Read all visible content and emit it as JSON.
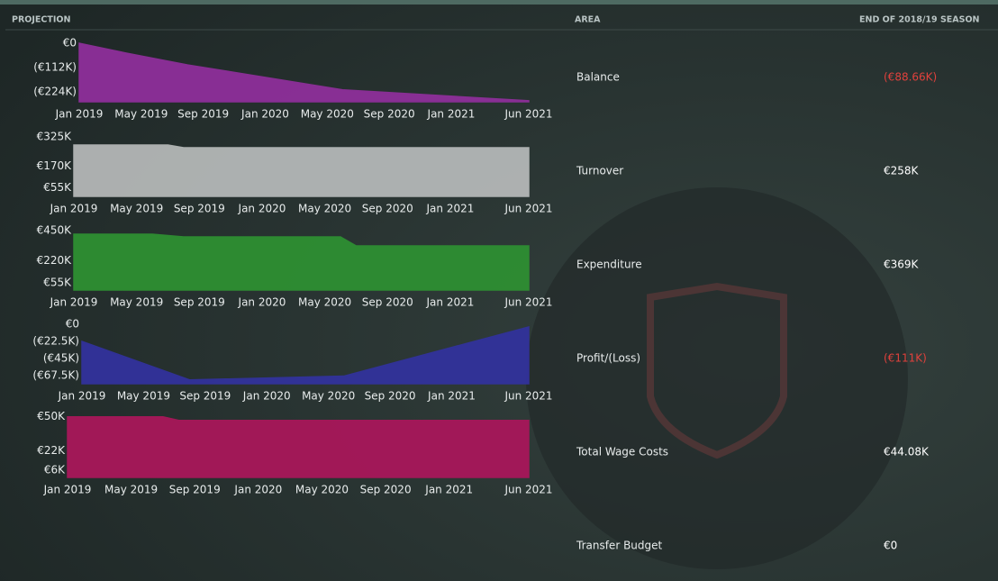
{
  "header": {
    "projection": "PROJECTION",
    "area": "AREA",
    "season": "END OF 2018/19 SEASON"
  },
  "chart_data": [
    {
      "type": "area",
      "color": "#8e2f9a",
      "x": [
        "2019-01",
        "2019-04",
        "2019-08",
        "2020-06",
        "2021-06"
      ],
      "values": [
        0,
        -45,
        -100,
        -215,
        -265
      ],
      "xlim": [
        "2019-01",
        "2021-06"
      ],
      "ylim": [
        -270,
        0
      ],
      "yticks": [
        {
          "value": 0,
          "label": "€0"
        },
        {
          "value": -112,
          "label": "(€112K)"
        },
        {
          "value": -224,
          "label": "(€224K)"
        }
      ],
      "xticks": [
        {
          "value": "2019-01",
          "label": "Jan 2019"
        },
        {
          "value": "2019-05",
          "label": "May 2019"
        },
        {
          "value": "2019-09",
          "label": "Sep 2019"
        },
        {
          "value": "2020-01",
          "label": "Jan 2020"
        },
        {
          "value": "2020-05",
          "label": "May 2020"
        },
        {
          "value": "2020-09",
          "label": "Sep 2020"
        },
        {
          "value": "2021-01",
          "label": "Jan 2021"
        },
        {
          "value": "2021-06",
          "label": "Jun 2021"
        }
      ]
    },
    {
      "type": "area",
      "color": "#b4b7b7",
      "x": [
        "2019-01",
        "2019-07",
        "2019-08",
        "2021-06"
      ],
      "values": [
        282,
        282,
        268,
        268
      ],
      "xlim": [
        "2019-01",
        "2021-06"
      ],
      "ylim": [
        10,
        325
      ],
      "yticks": [
        {
          "value": 325,
          "label": "€325K"
        },
        {
          "value": 170,
          "label": "€170K"
        },
        {
          "value": 55,
          "label": "€55K"
        }
      ],
      "xticks": [
        {
          "value": "2019-01",
          "label": "Jan 2019"
        },
        {
          "value": "2019-05",
          "label": "May 2019"
        },
        {
          "value": "2019-09",
          "label": "Sep 2019"
        },
        {
          "value": "2020-01",
          "label": "Jan 2020"
        },
        {
          "value": "2020-05",
          "label": "May 2020"
        },
        {
          "value": "2020-09",
          "label": "Sep 2020"
        },
        {
          "value": "2021-01",
          "label": "Jan 2021"
        },
        {
          "value": "2021-06",
          "label": "Jun 2021"
        }
      ]
    },
    {
      "type": "area",
      "color": "#2e8f32",
      "x": [
        "2019-01",
        "2019-06",
        "2019-08",
        "2020-06",
        "2020-07",
        "2021-06"
      ],
      "values": [
        423,
        423,
        402,
        402,
        334,
        334
      ],
      "xlim": [
        "2019-01",
        "2021-06"
      ],
      "ylim": [
        0,
        450
      ],
      "yticks": [
        {
          "value": 450,
          "label": "€450K"
        },
        {
          "value": 220,
          "label": "€220K"
        },
        {
          "value": 55,
          "label": "€55K"
        }
      ],
      "xticks": [
        {
          "value": "2019-01",
          "label": "Jan 2019"
        },
        {
          "value": "2019-05",
          "label": "May 2019"
        },
        {
          "value": "2019-09",
          "label": "Sep 2019"
        },
        {
          "value": "2020-01",
          "label": "Jan 2020"
        },
        {
          "value": "2020-05",
          "label": "May 2020"
        },
        {
          "value": "2020-09",
          "label": "Sep 2020"
        },
        {
          "value": "2021-01",
          "label": "Jan 2021"
        },
        {
          "value": "2021-06",
          "label": "Jun 2021"
        }
      ]
    },
    {
      "type": "area",
      "color": "#32329c",
      "x": [
        "2019-01",
        "2019-08",
        "2020-06",
        "2021-06"
      ],
      "values": [
        -22.5,
        -73,
        -68,
        -3.5
      ],
      "xlim": [
        "2019-01",
        "2021-06"
      ],
      "ylim": [
        -78,
        0
      ],
      "yticks": [
        {
          "value": 0,
          "label": "€0"
        },
        {
          "value": -22.5,
          "label": "(€22.5K)"
        },
        {
          "value": -45,
          "label": "(€45K)"
        },
        {
          "value": -67.5,
          "label": "(€67.5K)"
        }
      ],
      "xticks": [
        {
          "value": "2019-01",
          "label": "Jan 2019"
        },
        {
          "value": "2019-05",
          "label": "May 2019"
        },
        {
          "value": "2019-09",
          "label": "Sep 2019"
        },
        {
          "value": "2020-01",
          "label": "Jan 2020"
        },
        {
          "value": "2020-05",
          "label": "May 2020"
        },
        {
          "value": "2020-09",
          "label": "Sep 2020"
        },
        {
          "value": "2021-01",
          "label": "Jan 2021"
        },
        {
          "value": "2021-06",
          "label": "Jun 2021"
        }
      ]
    },
    {
      "type": "area",
      "color": "#a8175a",
      "x": [
        "2019-01",
        "2019-07",
        "2019-08",
        "2021-06"
      ],
      "values": [
        50,
        50,
        47,
        47
      ],
      "xlim": [
        "2019-01",
        "2021-06"
      ],
      "ylim": [
        0,
        52
      ],
      "yticks": [
        {
          "value": 50,
          "label": "€50K"
        },
        {
          "value": 22,
          "label": "€22K"
        },
        {
          "value": 6,
          "label": "€6K"
        }
      ],
      "xticks": [
        {
          "value": "2019-01",
          "label": "Jan 2019"
        },
        {
          "value": "2019-05",
          "label": "May 2019"
        },
        {
          "value": "2019-09",
          "label": "Sep 2019"
        },
        {
          "value": "2020-01",
          "label": "Jan 2020"
        },
        {
          "value": "2020-05",
          "label": "May 2020"
        },
        {
          "value": "2020-09",
          "label": "Sep 2020"
        },
        {
          "value": "2021-01",
          "label": "Jan 2021"
        },
        {
          "value": "2021-06",
          "label": "Jun 2021"
        }
      ]
    }
  ],
  "table": {
    "rows": [
      {
        "area": "Balance",
        "value": "(€88.66K)",
        "color": "#e0413c"
      },
      {
        "area": "Turnover",
        "value": "€258K",
        "color": "#ffffff"
      },
      {
        "area": "Expenditure",
        "value": "€369K",
        "color": "#ffffff"
      },
      {
        "area": "Profit/(Loss)",
        "value": "(€111K)",
        "color": "#e0413c"
      },
      {
        "area": "Total Wage Costs",
        "value": "€44.08K",
        "color": "#ffffff"
      },
      {
        "area": "Transfer Budget",
        "value": "€0",
        "color": "#ffffff"
      }
    ]
  }
}
